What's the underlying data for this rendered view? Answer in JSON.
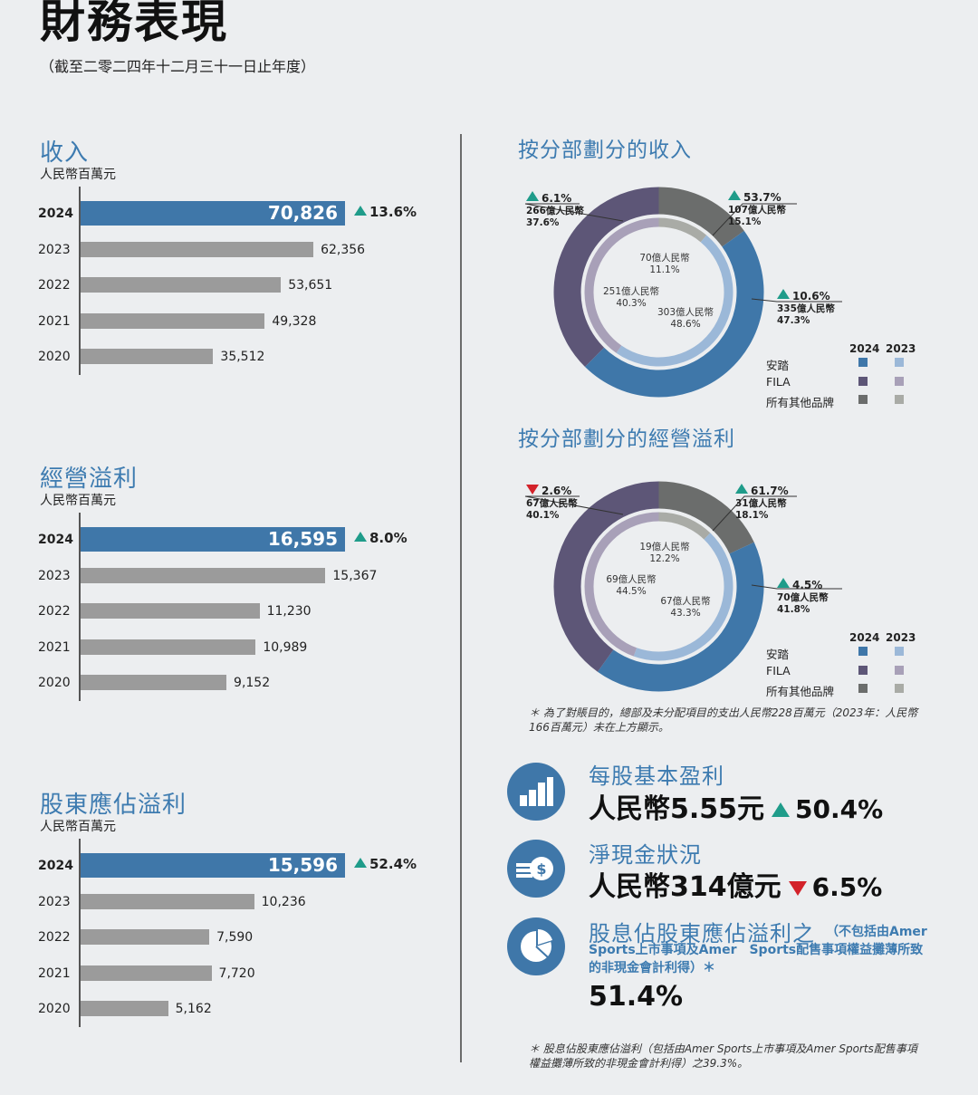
{
  "header": {
    "title": "財務表現",
    "subtitle": "（截至二零二四年十二月三十一日止年度）"
  },
  "chart_data": [
    {
      "type": "bar",
      "title": "收入",
      "unit": "人民幣百萬元",
      "categories": [
        "2024",
        "2023",
        "2022",
        "2021",
        "2020"
      ],
      "values": [
        70826,
        62356,
        53651,
        49328,
        35512
      ],
      "value_labels": [
        "70,826",
        "62,356",
        "53,651",
        "49,328",
        "35,512"
      ],
      "highlight": {
        "year": "2024",
        "change": "13.6%",
        "direction": "up"
      },
      "xlim": [
        0,
        80000
      ]
    },
    {
      "type": "bar",
      "title": "經營溢利",
      "unit": "人民幣百萬元",
      "categories": [
        "2024",
        "2023",
        "2022",
        "2021",
        "2020"
      ],
      "values": [
        16595,
        15367,
        11230,
        10989,
        9152
      ],
      "value_labels": [
        "16,595",
        "15,367",
        "11,230",
        "10,989",
        "9,152"
      ],
      "highlight": {
        "year": "2024",
        "change": "8.0%",
        "direction": "up"
      },
      "xlim": [
        0,
        19000
      ]
    },
    {
      "type": "bar",
      "title": "股東應佔溢利",
      "unit": "人民幣百萬元",
      "categories": [
        "2024",
        "2023",
        "2022",
        "2021",
        "2020"
      ],
      "values": [
        15596,
        10236,
        7590,
        7720,
        5162
      ],
      "value_labels": [
        "15,596",
        "10,236",
        "7,590",
        "7,720",
        "5,162"
      ],
      "highlight": {
        "year": "2024",
        "change": "52.4%",
        "direction": "up"
      },
      "xlim": [
        0,
        17000
      ]
    },
    {
      "type": "pie",
      "title": "按分部劃分的收入",
      "series": [
        {
          "year": "2024",
          "ring": "outer",
          "slices": [
            {
              "segment": "安踏",
              "amount": "335億人民幣",
              "share": 47.3,
              "change": "10.6%",
              "direction": "up"
            },
            {
              "segment": "FILA",
              "amount": "266億人民幣",
              "share": 37.6,
              "change": "6.1%",
              "direction": "up"
            },
            {
              "segment": "所有其他品牌",
              "amount": "107億人民幣",
              "share": 15.1,
              "change": "53.7%",
              "direction": "up"
            }
          ]
        },
        {
          "year": "2023",
          "ring": "inner",
          "slices": [
            {
              "segment": "安踏",
              "amount": "303億人民幣",
              "share": 48.6
            },
            {
              "segment": "FILA",
              "amount": "251億人民幣",
              "share": 40.3
            },
            {
              "segment": "所有其他品牌",
              "amount": "70億人民幣",
              "share": 11.1
            }
          ]
        }
      ],
      "legend": {
        "years": [
          "2024",
          "2023"
        ],
        "items": [
          "安踏",
          "FILA",
          "所有其他品牌"
        ]
      }
    },
    {
      "type": "pie",
      "title": "按分部劃分的經營溢利",
      "series": [
        {
          "year": "2024",
          "ring": "outer",
          "slices": [
            {
              "segment": "安踏",
              "amount": "70億人民幣",
              "share": 41.8,
              "change": "4.5%",
              "direction": "up"
            },
            {
              "segment": "FILA",
              "amount": "67億人民幣",
              "share": 40.1,
              "change": "2.6%",
              "direction": "down"
            },
            {
              "segment": "所有其他品牌",
              "amount": "31億人民幣",
              "share": 18.1,
              "change": "61.7%",
              "direction": "up"
            }
          ]
        },
        {
          "year": "2023",
          "ring": "inner",
          "slices": [
            {
              "segment": "安踏",
              "amount": "67億人民幣",
              "share": 43.3
            },
            {
              "segment": "FILA",
              "amount": "69億人民幣",
              "share": 44.5
            },
            {
              "segment": "所有其他品牌",
              "amount": "19億人民幣",
              "share": 12.2
            }
          ]
        }
      ],
      "legend": {
        "years": [
          "2024",
          "2023"
        ],
        "items": [
          "安踏",
          "FILA",
          "所有其他品牌"
        ]
      }
    }
  ],
  "colors": {
    "anta_2024": "#3f77a9",
    "anta_2023": "#9bb8d8",
    "fila_2024": "#5d5677",
    "fila_2023": "#a8a0b8",
    "other_2024": "#6b6d6c",
    "other_2023": "#a9aba6",
    "bar_grey": "#9b9b9b",
    "bar_highlight": "#3f77a9",
    "up": "#1f9c8a",
    "down": "#d3222a",
    "accent": "#3d7bb0"
  },
  "notes": {
    "segment_note": "＊ 為了對賬目的，總部及未分配項目的支出人民幣228百萬元（2023年：人民幣166百萬元）未在上方顯示。",
    "payout_note": "＊ 股息佔股東應佔溢利（包括由Amer Sports上市事項及Amer Sports配售事項權益攤薄所致的非現金會計利得）之39.3%。"
  },
  "kpis": {
    "eps": {
      "title": "每股基本盈利",
      "value": "人民幣5.55元",
      "change": "50.4%",
      "direction": "up",
      "icon": "bar-chart-icon"
    },
    "cash": {
      "title": "淨現金狀況",
      "value": "人民幣314億元",
      "change": "6.5%",
      "direction": "down",
      "icon": "cash-coin-icon"
    },
    "payout": {
      "title": "股息佔股東應佔溢利之",
      "desc": "（不包括由Amer Sports上市事項及Amer　Sports配售事項權益攤薄所致的非現金會計利得）＊",
      "value": "51.4%",
      "icon": "pie-chart-icon"
    }
  }
}
